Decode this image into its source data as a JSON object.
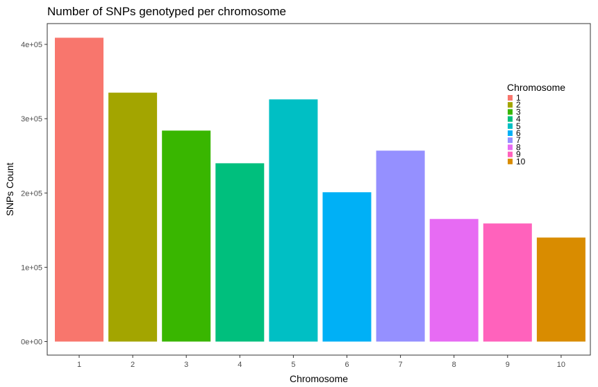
{
  "chart_data": {
    "type": "bar",
    "title": "Number of SNPs genotyped per chromosome",
    "xlabel": "Chromosome",
    "ylabel": "SNPs Count",
    "categories": [
      "1",
      "2",
      "3",
      "4",
      "5",
      "6",
      "7",
      "8",
      "9",
      "10"
    ],
    "values": [
      409000,
      335000,
      284000,
      240000,
      326000,
      201000,
      257000,
      165000,
      159000,
      140000
    ],
    "colors": [
      "#F8766D",
      "#A3A500",
      "#39B600",
      "#00BF7D",
      "#00BFC4",
      "#00B0F6",
      "#9590FF",
      "#E76BF3",
      "#FF62BC",
      "#D98C00"
    ],
    "yticks": [
      0,
      100000,
      200000,
      300000,
      400000
    ],
    "ytick_labels": [
      "0e+00",
      "1e+05",
      "2e+05",
      "3e+05",
      "4e+05"
    ],
    "ylim": [
      0,
      430000
    ],
    "grid": false,
    "legend": {
      "title": "Chromosome",
      "placement": "right",
      "labels": [
        "1",
        "2",
        "3",
        "4",
        "5",
        "6",
        "7",
        "8",
        "9",
        "10"
      ]
    }
  }
}
